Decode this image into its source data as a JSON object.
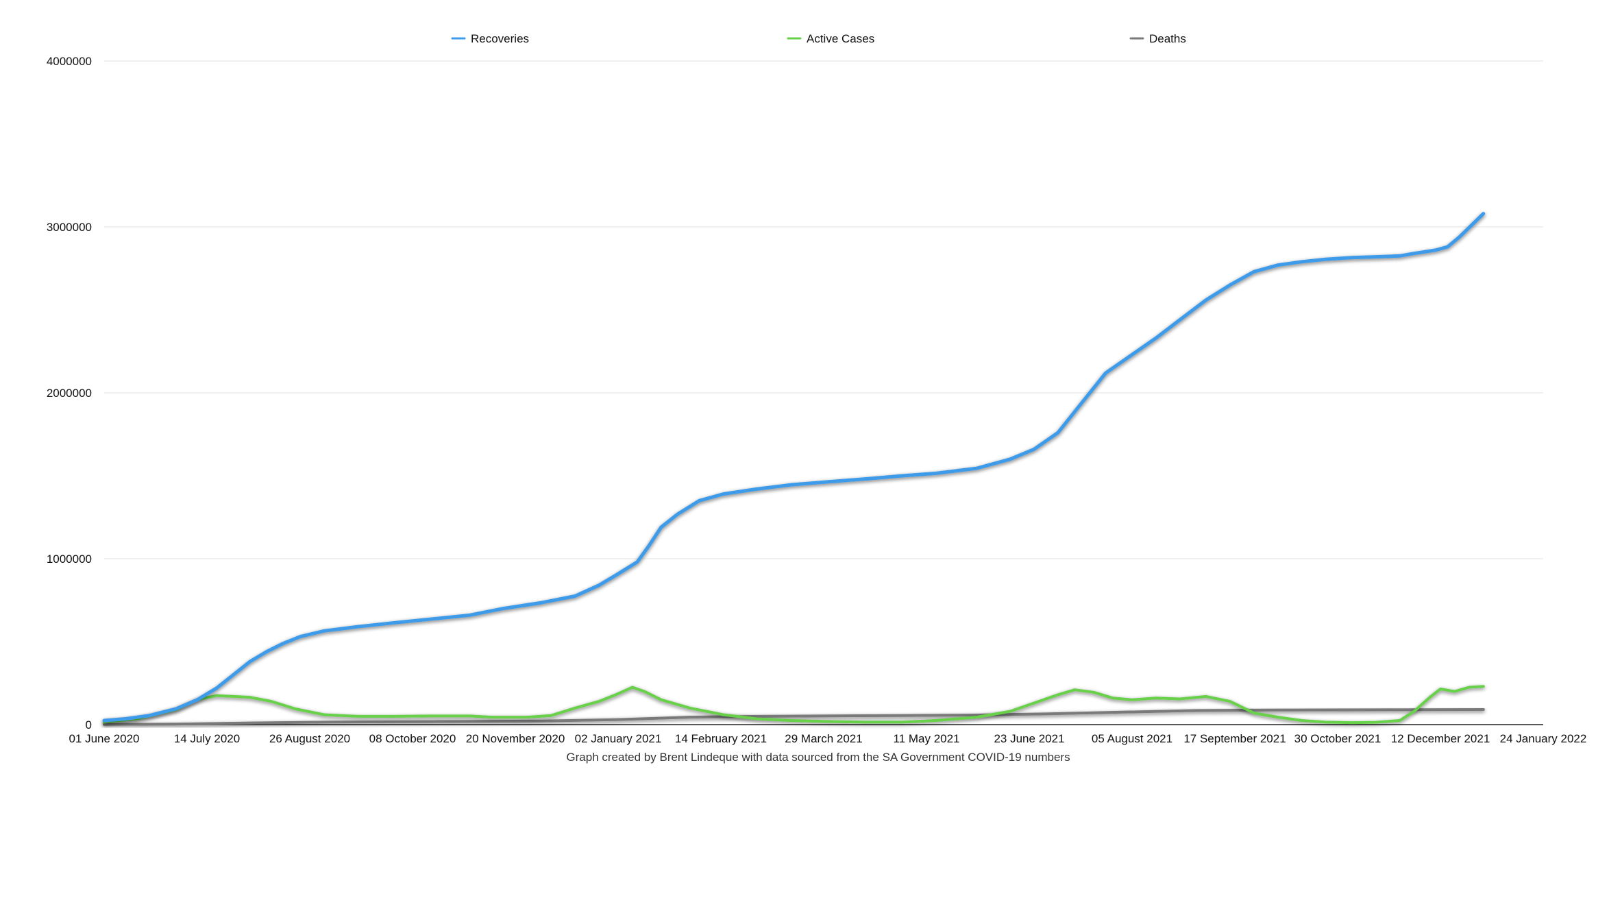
{
  "chart_data": {
    "type": "line",
    "title": "",
    "xlabel": "",
    "ylabel": "",
    "caption": "Graph created by Brent Lindeque with data sourced from the SA Government COVID-19 numbers",
    "legend_position": "top",
    "grid": true,
    "x_range": [
      "2020-06-01",
      "2022-01-24"
    ],
    "ylim": [
      0,
      4000000
    ],
    "y_ticks": [
      "0",
      "1000000",
      "2000000",
      "3000000",
      "4000000"
    ],
    "x_ticks": [
      "01 June 2020",
      "14 July 2020",
      "26 August 2020",
      "08 October 2020",
      "20 November 2020",
      "02 January 2021",
      "14 February 2021",
      "29 March 2021",
      "11 May 2021",
      "23 June 2021",
      "05 August 2021",
      "17 September 2021",
      "30 October 2021",
      "12 December 2021",
      "24 January 2022"
    ],
    "colors": {
      "Recoveries": "#3d9be9",
      "Active Cases": "#67d04a",
      "Deaths": "#7a7a7a",
      "grid": "#e2e2e2",
      "axis": "#222222"
    },
    "series": [
      {
        "name": "Recoveries",
        "points": [
          [
            "2020-06-01",
            25000
          ],
          [
            "2020-06-10",
            35000
          ],
          [
            "2020-06-20",
            55000
          ],
          [
            "2020-07-01",
            95000
          ],
          [
            "2020-07-10",
            150000
          ],
          [
            "2020-07-18",
            220000
          ],
          [
            "2020-07-25",
            300000
          ],
          [
            "2020-08-01",
            380000
          ],
          [
            "2020-08-08",
            440000
          ],
          [
            "2020-08-15",
            490000
          ],
          [
            "2020-08-22",
            530000
          ],
          [
            "2020-09-01",
            565000
          ],
          [
            "2020-09-15",
            590000
          ],
          [
            "2020-10-01",
            615000
          ],
          [
            "2020-10-15",
            635000
          ],
          [
            "2020-11-01",
            660000
          ],
          [
            "2020-11-15",
            700000
          ],
          [
            "2020-12-01",
            735000
          ],
          [
            "2020-12-15",
            775000
          ],
          [
            "2020-12-25",
            840000
          ],
          [
            "2021-01-01",
            900000
          ],
          [
            "2021-01-10",
            980000
          ],
          [
            "2021-01-15",
            1080000
          ],
          [
            "2021-01-20",
            1190000
          ],
          [
            "2021-01-27",
            1270000
          ],
          [
            "2021-02-05",
            1350000
          ],
          [
            "2021-02-15",
            1390000
          ],
          [
            "2021-03-01",
            1420000
          ],
          [
            "2021-03-15",
            1445000
          ],
          [
            "2021-04-01",
            1465000
          ],
          [
            "2021-04-15",
            1480000
          ],
          [
            "2021-05-01",
            1500000
          ],
          [
            "2021-05-15",
            1515000
          ],
          [
            "2021-06-01",
            1545000
          ],
          [
            "2021-06-15",
            1600000
          ],
          [
            "2021-06-25",
            1660000
          ],
          [
            "2021-07-05",
            1760000
          ],
          [
            "2021-07-15",
            1940000
          ],
          [
            "2021-07-25",
            2120000
          ],
          [
            "2021-08-05",
            2230000
          ],
          [
            "2021-08-15",
            2330000
          ],
          [
            "2021-08-25",
            2440000
          ],
          [
            "2021-09-05",
            2560000
          ],
          [
            "2021-09-15",
            2650000
          ],
          [
            "2021-09-25",
            2730000
          ],
          [
            "2021-10-05",
            2770000
          ],
          [
            "2021-10-15",
            2790000
          ],
          [
            "2021-10-25",
            2805000
          ],
          [
            "2021-11-05",
            2815000
          ],
          [
            "2021-11-15",
            2820000
          ],
          [
            "2021-11-25",
            2825000
          ],
          [
            "2021-12-01",
            2840000
          ],
          [
            "2021-12-10",
            2860000
          ],
          [
            "2021-12-15",
            2880000
          ],
          [
            "2021-12-20",
            2940000
          ],
          [
            "2021-12-25",
            3010000
          ],
          [
            "2021-12-30",
            3080000
          ]
        ]
      },
      {
        "name": "Active Cases",
        "points": [
          [
            "2020-06-01",
            15000
          ],
          [
            "2020-06-15",
            35000
          ],
          [
            "2020-07-01",
            90000
          ],
          [
            "2020-07-10",
            150000
          ],
          [
            "2020-07-18",
            175000
          ],
          [
            "2020-07-25",
            170000
          ],
          [
            "2020-08-01",
            165000
          ],
          [
            "2020-08-10",
            140000
          ],
          [
            "2020-08-20",
            95000
          ],
          [
            "2020-09-01",
            60000
          ],
          [
            "2020-09-15",
            50000
          ],
          [
            "2020-10-01",
            50000
          ],
          [
            "2020-10-15",
            52000
          ],
          [
            "2020-11-01",
            52000
          ],
          [
            "2020-11-10",
            45000
          ],
          [
            "2020-11-25",
            45000
          ],
          [
            "2020-12-05",
            55000
          ],
          [
            "2020-12-15",
            100000
          ],
          [
            "2020-12-25",
            140000
          ],
          [
            "2021-01-01",
            180000
          ],
          [
            "2021-01-08",
            225000
          ],
          [
            "2021-01-13",
            200000
          ],
          [
            "2021-01-20",
            150000
          ],
          [
            "2021-02-01",
            100000
          ],
          [
            "2021-02-15",
            60000
          ],
          [
            "2021-03-01",
            35000
          ],
          [
            "2021-03-15",
            25000
          ],
          [
            "2021-04-01",
            18000
          ],
          [
            "2021-04-15",
            15000
          ],
          [
            "2021-05-01",
            15000
          ],
          [
            "2021-05-15",
            25000
          ],
          [
            "2021-06-01",
            45000
          ],
          [
            "2021-06-15",
            80000
          ],
          [
            "2021-06-25",
            130000
          ],
          [
            "2021-07-05",
            180000
          ],
          [
            "2021-07-12",
            210000
          ],
          [
            "2021-07-20",
            195000
          ],
          [
            "2021-07-28",
            160000
          ],
          [
            "2021-08-05",
            150000
          ],
          [
            "2021-08-15",
            160000
          ],
          [
            "2021-08-25",
            155000
          ],
          [
            "2021-09-05",
            170000
          ],
          [
            "2021-09-15",
            140000
          ],
          [
            "2021-09-25",
            70000
          ],
          [
            "2021-10-05",
            45000
          ],
          [
            "2021-10-15",
            25000
          ],
          [
            "2021-10-25",
            15000
          ],
          [
            "2021-11-05",
            12000
          ],
          [
            "2021-11-15",
            14000
          ],
          [
            "2021-11-25",
            25000
          ],
          [
            "2021-12-01",
            80000
          ],
          [
            "2021-12-08",
            170000
          ],
          [
            "2021-12-12",
            215000
          ],
          [
            "2021-12-18",
            200000
          ],
          [
            "2021-12-24",
            225000
          ],
          [
            "2021-12-30",
            230000
          ]
        ]
      },
      {
        "name": "Deaths",
        "points": [
          [
            "2020-06-01",
            1000
          ],
          [
            "2020-07-01",
            3000
          ],
          [
            "2020-08-01",
            10000
          ],
          [
            "2020-09-01",
            15000
          ],
          [
            "2020-10-01",
            17000
          ],
          [
            "2020-11-01",
            19000
          ],
          [
            "2020-12-01",
            22000
          ],
          [
            "2021-01-01",
            30000
          ],
          [
            "2021-02-01",
            45000
          ],
          [
            "2021-03-01",
            50000
          ],
          [
            "2021-04-01",
            53000
          ],
          [
            "2021-05-01",
            55000
          ],
          [
            "2021-06-01",
            58000
          ],
          [
            "2021-07-01",
            65000
          ],
          [
            "2021-08-01",
            75000
          ],
          [
            "2021-09-01",
            85000
          ],
          [
            "2021-10-01",
            88000
          ],
          [
            "2021-11-01",
            89000
          ],
          [
            "2021-12-01",
            90000
          ],
          [
            "2021-12-30",
            91000
          ]
        ]
      }
    ]
  }
}
